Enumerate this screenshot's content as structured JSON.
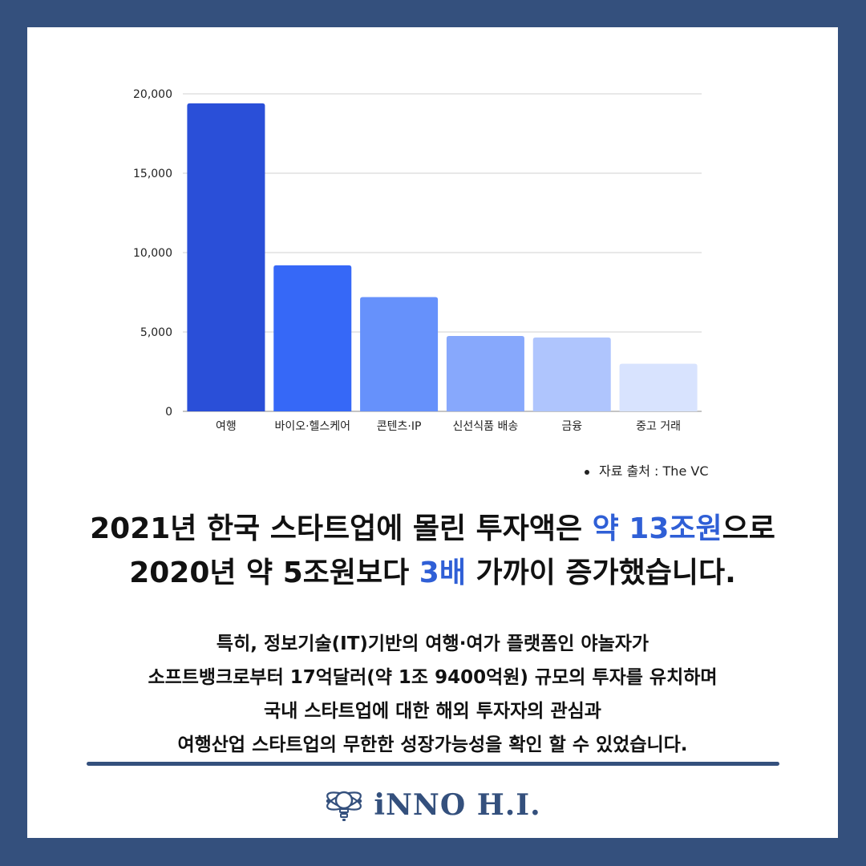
{
  "chart_data": {
    "type": "bar",
    "categories": [
      "여행",
      "바이오·헬스케어",
      "콘텐츠·IP",
      "신선식품 배송",
      "금융",
      "중고 거래"
    ],
    "values": [
      19400,
      9200,
      7200,
      4750,
      4650,
      3000
    ],
    "yticks": [
      "0",
      "5,000",
      "10,000",
      "15,000",
      "20,000"
    ],
    "ylim": [
      0,
      20000
    ],
    "bar_colors": [
      "#2a4fd8",
      "#3668f7",
      "#6691fb",
      "#87a8fc",
      "#afc5fd",
      "#d8e3fe"
    ],
    "grid": true,
    "title": "",
    "xlabel": "",
    "ylabel": ""
  },
  "source": {
    "text": "자료 출처 : The VC"
  },
  "headline": {
    "line1_pre": "2021년 한국 스타트업에 몰린 투자액은 ",
    "line1_highlight": "약 13조원",
    "line1_post": "으로",
    "line2_pre": "2020년 약 5조원보다 ",
    "line2_highlight": "3배",
    "line2_post": " 가까이 증가했습니다.",
    "highlight_color": "#2f5fd6"
  },
  "body": {
    "lines": [
      "특히, 정보기술(IT)기반의 여행·여가 플랫폼인 야놀자가",
      "소프트뱅크로부터 17억달러(약 1조 9400억원) 규모의 투자를 유치하며",
      "국내 스타트업에 대한 해외 투자자의 관심과",
      "여행산업 스타트업의 무한한 성장가능성을 확인 할 수 있었습니다."
    ]
  },
  "brand": {
    "logo_text": "iNNO H.I.",
    "logo_icon": "lightbulb-atom-icon",
    "color": "#34507d"
  }
}
